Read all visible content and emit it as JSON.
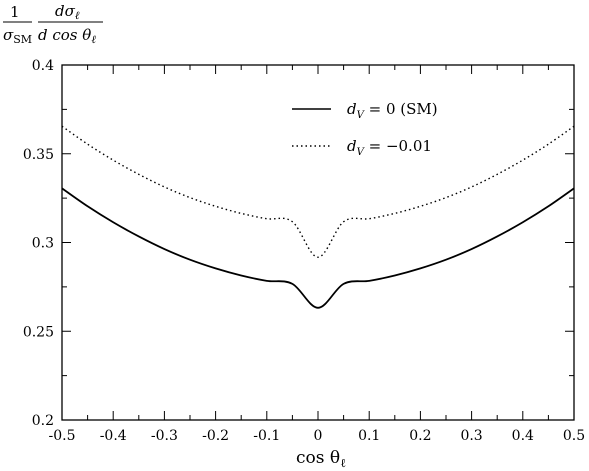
{
  "chart_data": {
    "type": "line",
    "ylabel": {
      "num_a": "1",
      "den_a": "σ",
      "den_a_sub": "SM",
      "num_b": "dσ",
      "num_b_sub": "ℓ",
      "den_b": "d cos θ",
      "den_b_sub": "ℓ"
    },
    "xlabel": {
      "text": "cos θ",
      "sub": "ℓ"
    },
    "xlim": [
      -0.5,
      0.5
    ],
    "ylim": [
      0.2,
      0.4
    ],
    "x_ticks": [
      -0.5,
      -0.4,
      -0.3,
      -0.2,
      -0.1,
      0,
      0.1,
      0.2,
      0.3,
      0.4,
      0.5
    ],
    "x_tick_labels": [
      "-0.5",
      "-0.4",
      "-0.3",
      "-0.2",
      "-0.1",
      "0",
      "0.1",
      "0.2",
      "0.3",
      "0.4",
      "0.5"
    ],
    "y_ticks": [
      0.2,
      0.25,
      0.3,
      0.35,
      0.4
    ],
    "y_tick_labels": [
      "0.2",
      "0.25",
      "0.3",
      "0.35",
      "0.4"
    ],
    "legend_position": "top-right",
    "series": [
      {
        "name": "d_V = 0 (SM)",
        "legend": {
          "var": "d",
          "sub": "V",
          "rest": " = 0 (SM)"
        },
        "style": "solid",
        "color": "#000000",
        "x": [
          -0.5,
          -0.45,
          -0.4,
          -0.35,
          -0.3,
          -0.25,
          -0.2,
          -0.15,
          -0.1,
          -0.05,
          0,
          0.05,
          0.1,
          0.15,
          0.2,
          0.25,
          0.3,
          0.35,
          0.4,
          0.45,
          0.5
        ],
        "y": [
          0.3305,
          0.3204,
          0.3114,
          0.3034,
          0.2963,
          0.2903,
          0.2854,
          0.2814,
          0.2784,
          0.2767,
          0.2632,
          0.2767,
          0.2784,
          0.2814,
          0.2854,
          0.2903,
          0.2963,
          0.3034,
          0.3114,
          0.3204,
          0.3305
        ]
      },
      {
        "name": "d_V = −0.01",
        "legend": {
          "var": "d",
          "sub": "V",
          "rest": " = −0.01"
        },
        "style": "dotted",
        "color": "#000000",
        "x": [
          -0.5,
          -0.45,
          -0.4,
          -0.35,
          -0.3,
          -0.25,
          -0.2,
          -0.15,
          -0.1,
          -0.05,
          0,
          0.05,
          0.1,
          0.15,
          0.2,
          0.25,
          0.3,
          0.35,
          0.4,
          0.45,
          0.5
        ],
        "y": [
          0.3655,
          0.3554,
          0.3464,
          0.3384,
          0.3313,
          0.3253,
          0.3204,
          0.3164,
          0.3134,
          0.3117,
          0.2917,
          0.3117,
          0.3134,
          0.3164,
          0.3204,
          0.3253,
          0.3313,
          0.3384,
          0.3464,
          0.3554,
          0.3655
        ]
      }
    ]
  }
}
